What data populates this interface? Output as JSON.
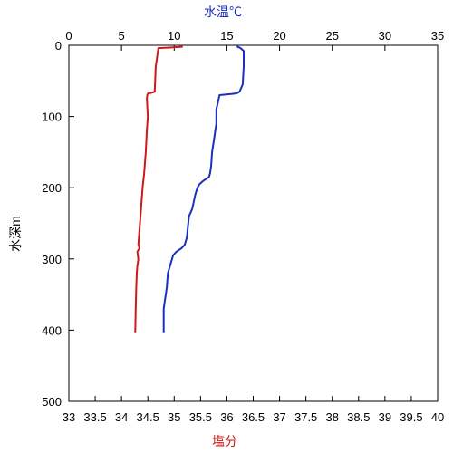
{
  "chart_data": {
    "type": "line",
    "top_axis": {
      "label": "水温℃",
      "color": "#1c2fbf",
      "range": [
        0,
        35
      ],
      "ticks": [
        "0",
        "5",
        "10",
        "15",
        "20",
        "25",
        "30",
        "35"
      ]
    },
    "bottom_axis": {
      "label": "塩分",
      "color": "#d01818",
      "range": [
        33,
        40
      ],
      "ticks": [
        "33",
        "33.5",
        "34",
        "34.5",
        "35",
        "35.5",
        "36",
        "36.5",
        "37",
        "37.5",
        "38",
        "38.5",
        "39",
        "39.5",
        "40"
      ]
    },
    "y_axis": {
      "label": "水深m",
      "range": [
        0,
        500
      ],
      "inverted": true,
      "ticks": [
        "0",
        "100",
        "200",
        "300",
        "400",
        "500"
      ]
    },
    "grid": false,
    "series": [
      {
        "axis": "top",
        "color": "#1c2fbf",
        "x": [
          16.0,
          16.3,
          16.6,
          16.6,
          16.5,
          16.2,
          16.0,
          15.7,
          14.3,
          14.0,
          14.0,
          13.9,
          13.8,
          13.6,
          13.5,
          13.4,
          13.3,
          12.8,
          12.4,
          12.2,
          12.0,
          11.7,
          11.4,
          11.3,
          11.2,
          11.0,
          10.7,
          10.2,
          9.9,
          9.6,
          9.4,
          9.3,
          9.2,
          9.1,
          9.0,
          9.0,
          9.0
        ],
        "y": [
          2,
          4,
          8,
          30,
          55,
          65,
          67,
          68,
          70,
          90,
          110,
          120,
          130,
          150,
          170,
          180,
          185,
          190,
          195,
          200,
          210,
          230,
          240,
          255,
          270,
          280,
          285,
          290,
          295,
          310,
          320,
          340,
          350,
          360,
          370,
          390,
          402
        ]
      },
      {
        "axis": "bottom",
        "color": "#d01818",
        "x": [
          35.15,
          34.95,
          34.7,
          34.65,
          34.63,
          34.6,
          34.5,
          34.49,
          34.48,
          34.5,
          34.48,
          34.46,
          34.45,
          34.43,
          34.4,
          34.38,
          34.36,
          34.34,
          34.32,
          34.34,
          34.3,
          34.32,
          34.31,
          34.3,
          34.29,
          34.28,
          34.27,
          34.26
        ],
        "y": [
          2,
          3,
          4,
          30,
          65,
          66,
          68,
          70,
          75,
          100,
          120,
          150,
          160,
          180,
          200,
          220,
          240,
          260,
          280,
          285,
          290,
          300,
          305,
          310,
          320,
          340,
          370,
          402
        ]
      }
    ]
  }
}
